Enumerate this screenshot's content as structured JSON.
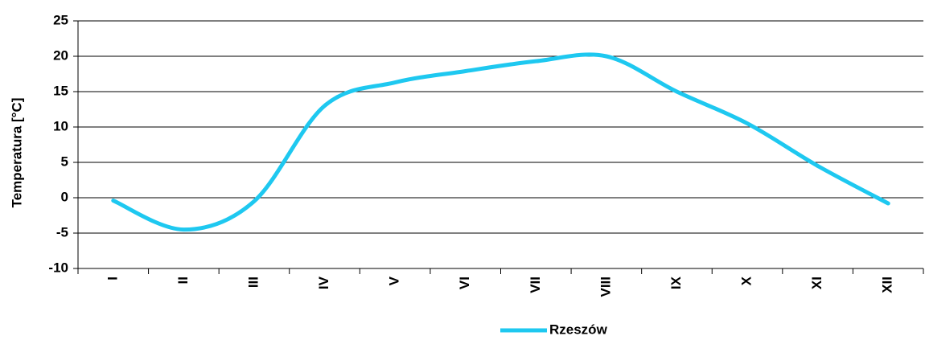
{
  "chart_data": {
    "type": "line",
    "y_label": "Temperatura [°C]",
    "categories": [
      "I",
      "II",
      "III",
      "IV",
      "V",
      "VI",
      "VII",
      "VIII",
      "IX",
      "X",
      "XI",
      "XII"
    ],
    "series": [
      {
        "name": "Rzeszów",
        "color": "#1ec8f0",
        "values": [
          -0.4,
          -4.5,
          -0.5,
          13,
          16.3,
          17.9,
          19.3,
          20,
          15,
          10.5,
          4.5,
          -0.8
        ]
      }
    ],
    "ylim": [
      -10,
      25
    ],
    "yticks": [
      -10,
      -5,
      0,
      5,
      10,
      15,
      20,
      25
    ],
    "grid": true,
    "legend": "bottom"
  }
}
